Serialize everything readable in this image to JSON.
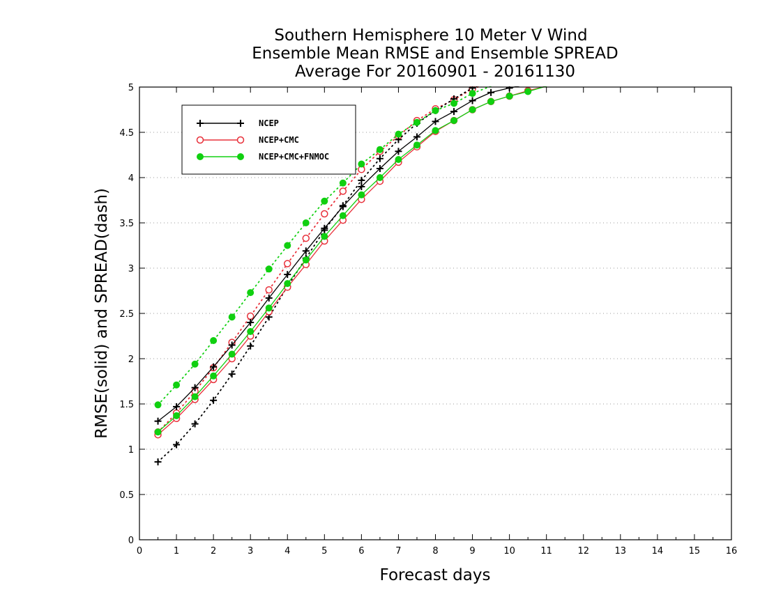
{
  "chart_data": {
    "type": "line",
    "title": [
      "Southern Hemisphere 10 Meter V Wind",
      "Ensemble Mean RMSE and Ensemble SPREAD",
      "Average For 20160901 - 20161130"
    ],
    "xlabel": "Forecast days",
    "ylabel": "RMSE(solid) and SPREAD(dash)",
    "xlim": [
      0,
      16
    ],
    "ylim": [
      0,
      5
    ],
    "xticks": [
      0,
      1,
      2,
      3,
      4,
      5,
      6,
      7,
      8,
      9,
      10,
      11,
      12,
      13,
      14,
      15,
      16
    ],
    "yticks": [
      0,
      0.5,
      1,
      1.5,
      2,
      2.5,
      3,
      3.5,
      4,
      4.5,
      5
    ],
    "ytick_labels": [
      "0",
      "0.5",
      "1",
      "1.5",
      "2",
      "2.5",
      "3",
      "3.5",
      "4",
      "4.5",
      "5"
    ],
    "grid": "horizontal dotted",
    "legend_position": "top-left",
    "x": [
      0.5,
      1,
      1.5,
      2,
      2.5,
      3,
      3.5,
      4,
      4.5,
      5,
      5.5,
      6,
      6.5,
      7,
      7.5,
      8,
      8.5,
      9,
      9.5,
      10,
      10.5,
      11
    ],
    "series": [
      {
        "name": "NCEP",
        "color": "#000000",
        "marker": "plus",
        "rmse": [
          1.31,
          1.47,
          1.68,
          1.91,
          2.15,
          2.4,
          2.67,
          2.93,
          3.19,
          3.44,
          3.68,
          3.9,
          4.1,
          4.29,
          4.45,
          4.62,
          4.73,
          4.85,
          4.94,
          4.99,
          5.03,
          5.06
        ],
        "spread": [
          0.86,
          1.05,
          1.28,
          1.54,
          1.83,
          2.14,
          2.46,
          2.8,
          3.11,
          3.42,
          3.69,
          3.97,
          4.21,
          4.42,
          4.6,
          4.74,
          4.87,
          4.99,
          5.08,
          5.14,
          5.18,
          5.21
        ]
      },
      {
        "name": "NCEP+CMC",
        "color": "#e8303a",
        "marker": "open-circle",
        "rmse": [
          1.16,
          1.34,
          1.55,
          1.77,
          2.0,
          2.25,
          2.52,
          2.79,
          3.04,
          3.3,
          3.53,
          3.76,
          3.96,
          4.17,
          4.34,
          4.51,
          4.63,
          4.75,
          4.84,
          4.9,
          4.96,
          5.01
        ],
        "spread": [
          1.19,
          1.4,
          1.64,
          1.9,
          2.18,
          2.47,
          2.76,
          3.05,
          3.33,
          3.6,
          3.85,
          4.09,
          4.29,
          4.46,
          4.63,
          4.76,
          4.86,
          4.98,
          5.05,
          5.1,
          5.14,
          5.17
        ]
      },
      {
        "name": "NCEP+CMC+FNMOC",
        "color": "#10d010",
        "marker": "filled-circle",
        "rmse": [
          1.19,
          1.37,
          1.58,
          1.81,
          2.05,
          2.3,
          2.56,
          2.83,
          3.09,
          3.35,
          3.58,
          3.81,
          4.0,
          4.2,
          4.36,
          4.52,
          4.63,
          4.75,
          4.84,
          4.9,
          4.95,
          5.01
        ],
        "spread": [
          1.49,
          1.71,
          1.94,
          2.2,
          2.46,
          2.73,
          2.99,
          3.25,
          3.5,
          3.74,
          3.94,
          4.15,
          4.31,
          4.48,
          4.61,
          4.74,
          4.82,
          4.93,
          5.01,
          5.06,
          5.1,
          5.13
        ]
      }
    ]
  }
}
